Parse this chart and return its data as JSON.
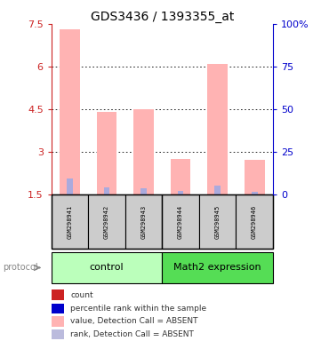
{
  "title": "GDS3436 / 1393355_at",
  "samples": [
    "GSM298941",
    "GSM298942",
    "GSM298943",
    "GSM298944",
    "GSM298945",
    "GSM298946"
  ],
  "pink_bar_tops": [
    7.3,
    4.4,
    4.5,
    2.75,
    6.1,
    2.7
  ],
  "pink_bar_bottoms": [
    1.5,
    1.5,
    1.5,
    1.5,
    1.5,
    1.5
  ],
  "blue_segment_tops": [
    2.05,
    1.75,
    1.72,
    1.63,
    1.82,
    1.6
  ],
  "blue_segment_bottoms": [
    1.5,
    1.5,
    1.5,
    1.5,
    1.5,
    1.5
  ],
  "ylim_left": [
    1.5,
    7.5
  ],
  "ylim_right": [
    0,
    100
  ],
  "yticks_left": [
    1.5,
    3.0,
    4.5,
    6.0,
    7.5
  ],
  "ytick_labels_left": [
    "1.5",
    "3",
    "4.5",
    "6",
    "7.5"
  ],
  "yticks_right": [
    0,
    25,
    50,
    75,
    100
  ],
  "ytick_labels_right": [
    "0",
    "25",
    "50",
    "75",
    "100%"
  ],
  "bar_width": 0.55,
  "pink_color": "#FFB3B3",
  "blue_color": "#AAAADD",
  "control_label": "control",
  "math2_label": "Math2 expression",
  "control_bg": "#BBFFBB",
  "math2_bg": "#55DD55",
  "protocol_label": "protocol",
  "left_axis_color": "#CC2222",
  "right_axis_color": "#0000CC",
  "title_fontsize": 10,
  "sample_box_color": "#CCCCCC",
  "legend_colors": [
    "#CC2222",
    "#0000CC",
    "#FFB3B3",
    "#BBBBDD"
  ],
  "legend_labels": [
    "count",
    "percentile rank within the sample",
    "value, Detection Call = ABSENT",
    "rank, Detection Call = ABSENT"
  ]
}
